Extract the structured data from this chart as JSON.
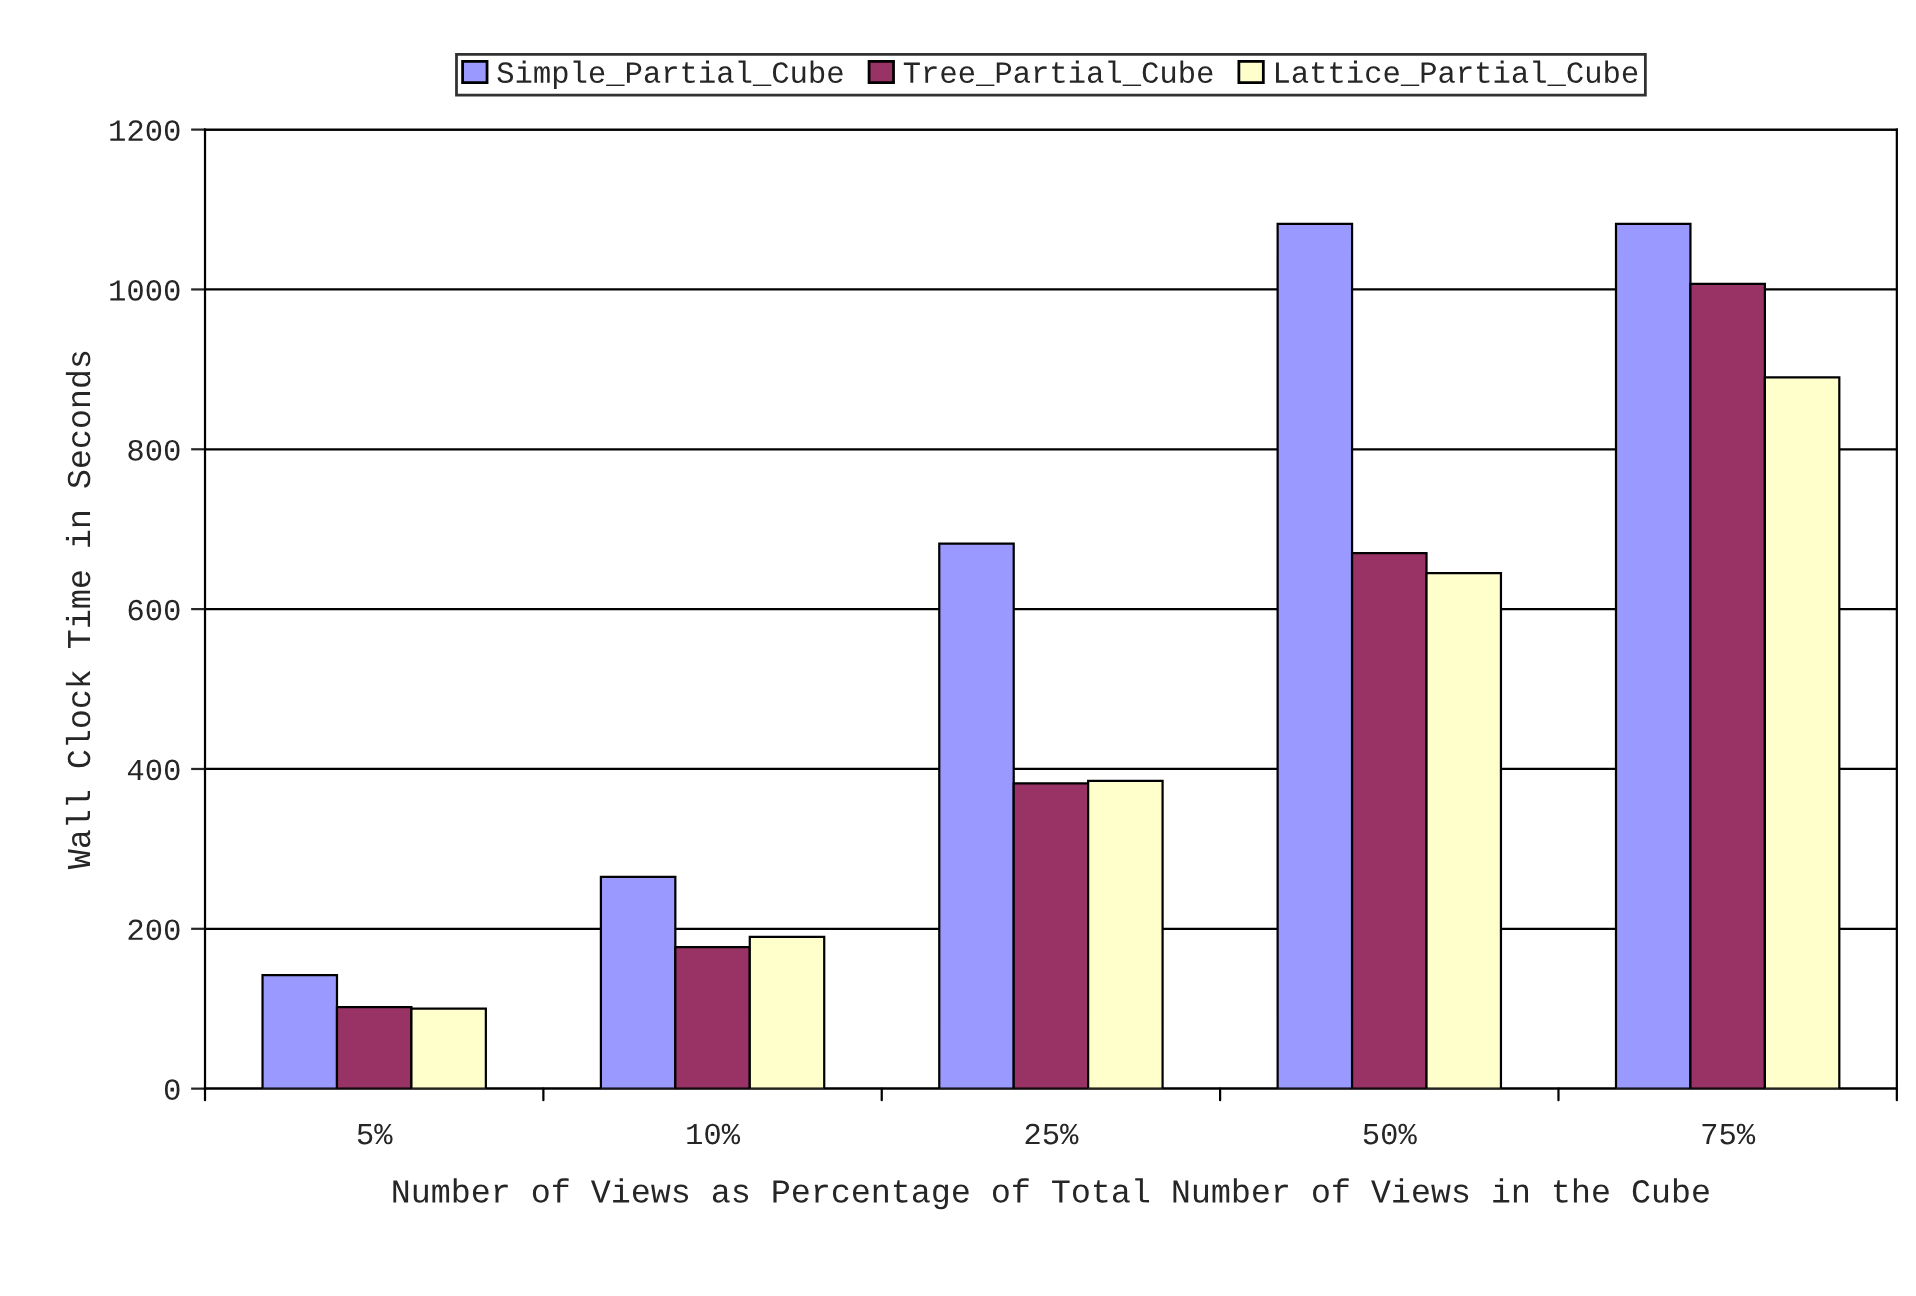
{
  "chart_data": {
    "type": "bar",
    "xlabel": "Number of Views as Percentage of Total Number of Views in the Cube",
    "ylabel": "Wall Clock Time in Seconds",
    "categories": [
      "5%",
      "10%",
      "25%",
      "50%",
      "75%"
    ],
    "series": [
      {
        "name": "Simple_Partial_Cube",
        "color": "#9999ff",
        "values": [
          142,
          265,
          682,
          1082,
          1082
        ]
      },
      {
        "name": "Tree_Partial_Cube",
        "color": "#993366",
        "values": [
          102,
          177,
          382,
          670,
          1007
        ]
      },
      {
        "name": "Lattice_Partial_Cube",
        "color": "#ffffcc",
        "values": [
          100,
          190,
          385,
          645,
          890
        ]
      }
    ],
    "ylim": [
      0,
      1200
    ],
    "yticks": [
      0,
      200,
      400,
      600,
      800,
      1000,
      1200
    ],
    "grid": "y",
    "legend": "top"
  }
}
